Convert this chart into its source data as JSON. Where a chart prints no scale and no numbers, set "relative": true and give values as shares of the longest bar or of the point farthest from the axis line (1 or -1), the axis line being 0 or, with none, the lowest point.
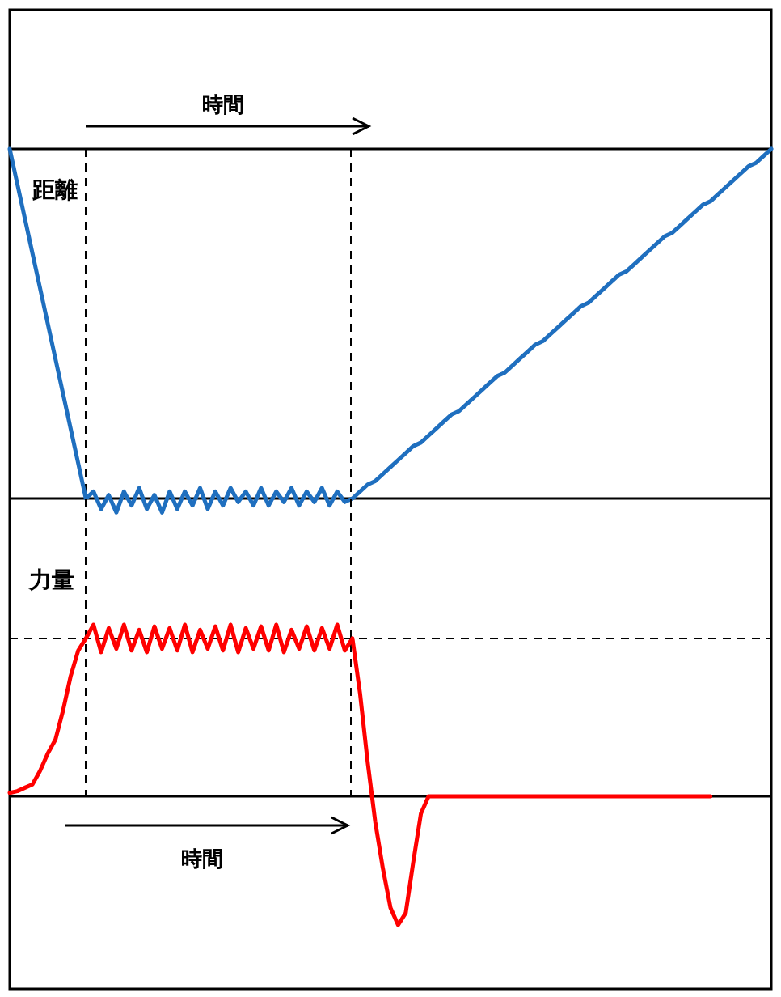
{
  "chart_data": [
    {
      "type": "line",
      "relative": true,
      "xlabel": "時間",
      "ylabel": "距離",
      "categories": [
        null,
        null,
        null,
        null,
        null,
        null,
        null,
        null,
        null,
        null,
        null,
        null,
        null,
        null,
        null,
        null,
        null,
        null,
        null,
        null,
        null,
        null,
        null,
        null,
        null,
        null,
        null,
        null,
        null,
        null,
        null,
        null,
        null,
        null,
        null,
        null,
        null,
        null,
        null,
        null,
        null,
        null,
        null,
        null,
        null,
        null,
        null,
        null,
        null,
        null,
        null,
        null,
        null,
        null,
        null,
        null,
        null,
        null,
        null,
        null,
        null,
        null,
        null,
        null,
        null,
        null,
        null,
        null,
        null,
        null,
        null,
        null,
        null,
        null,
        null,
        null,
        null,
        null,
        null,
        null,
        null,
        null,
        null,
        null,
        null,
        null,
        null,
        null,
        null,
        null,
        null,
        null,
        null,
        null,
        null,
        null,
        null,
        null,
        null,
        null,
        null
      ],
      "series": [
        {
          "color": "#1f6fbf",
          "values": [
            1,
            0.9,
            0.8,
            0.7,
            0.6,
            0.5,
            0.4,
            0.3,
            0.2,
            0.1,
            0,
            0.02,
            -0.03,
            0.01,
            -0.04,
            0.02,
            -0.02,
            0.03,
            -0.03,
            0.01,
            -0.04,
            0.02,
            -0.03,
            0.02,
            -0.02,
            0.03,
            -0.03,
            0.02,
            -0.02,
            0.03,
            -0.01,
            0.02,
            -0.02,
            0.03,
            -0.02,
            0.02,
            -0.01,
            0.03,
            -0.02,
            0.02,
            -0.01,
            0.03,
            -0.02,
            0.02,
            -0.01,
            0,
            0.02,
            0.04,
            0.05,
            0.07,
            0.09,
            0.11,
            0.13,
            0.15,
            0.16,
            0.18,
            0.2,
            0.22,
            0.24,
            0.25,
            0.27,
            0.29,
            0.31,
            0.33,
            0.35,
            0.36,
            0.38,
            0.4,
            0.42,
            0.44,
            0.45,
            0.47,
            0.49,
            0.51,
            0.53,
            0.55,
            0.56,
            0.58,
            0.6,
            0.62,
            0.64,
            0.65,
            0.67,
            0.69,
            0.71,
            0.73,
            0.75,
            0.76,
            0.78,
            0.8,
            0.82,
            0.84,
            0.85,
            0.87,
            0.89,
            0.91,
            0.93,
            0.95,
            0.96,
            0.98,
            1
          ]
        }
      ]
    },
    {
      "type": "line",
      "relative": true,
      "xlabel": "時間",
      "ylabel": "力量",
      "categories": [
        null,
        null,
        null,
        null,
        null,
        null,
        null,
        null,
        null,
        null,
        null,
        null,
        null,
        null,
        null,
        null,
        null,
        null,
        null,
        null,
        null,
        null,
        null,
        null,
        null,
        null,
        null,
        null,
        null,
        null,
        null,
        null,
        null,
        null,
        null,
        null,
        null,
        null,
        null,
        null,
        null,
        null,
        null,
        null,
        null,
        null,
        null,
        null,
        null,
        null,
        null,
        null,
        null,
        null,
        null,
        null,
        null,
        null,
        null,
        null,
        null,
        null,
        null,
        null,
        null,
        null,
        null,
        null,
        null,
        null,
        null,
        null,
        null,
        null,
        null,
        null,
        null,
        null,
        null,
        null,
        null,
        null,
        null,
        null,
        null,
        null,
        null,
        null,
        null,
        null,
        null,
        null,
        null,
        null,
        null,
        null,
        null,
        null,
        null,
        null,
        null
      ],
      "series": [
        {
          "color": "#ff0000",
          "values": [
            0.02,
            0.03,
            0.05,
            0.07,
            0.15,
            0.25,
            0.33,
            0.5,
            0.7,
            0.85,
            0.92,
            1,
            0.84,
            0.98,
            0.86,
            1,
            0.85,
            0.97,
            0.84,
            0.99,
            0.86,
            0.98,
            0.85,
            1,
            0.84,
            0.97,
            0.86,
            0.99,
            0.85,
            1,
            0.84,
            0.98,
            0.86,
            0.99,
            0.85,
            1,
            0.84,
            0.97,
            0.86,
            0.99,
            0.85,
            0.98,
            0.86,
            1,
            0.85,
            0.92,
            0.6,
            0.2,
            -0.15,
            -0.42,
            -0.65,
            -0.75,
            -0.68,
            -0.38,
            -0.1,
            0,
            0,
            0,
            0,
            0,
            0,
            0,
            0,
            0,
            0,
            0,
            0,
            0,
            0,
            0,
            0,
            0,
            0,
            0,
            0,
            0,
            0,
            0,
            0,
            0,
            0,
            0,
            0,
            0,
            0,
            0,
            0,
            0,
            0,
            0,
            0,
            0,
            0,
            null,
            null,
            null,
            null,
            null,
            null,
            null,
            null
          ]
        }
      ],
      "ref_lines": [
        {
          "axis": "y",
          "value": 0.92,
          "line_style": "dashed"
        }
      ]
    }
  ]
}
